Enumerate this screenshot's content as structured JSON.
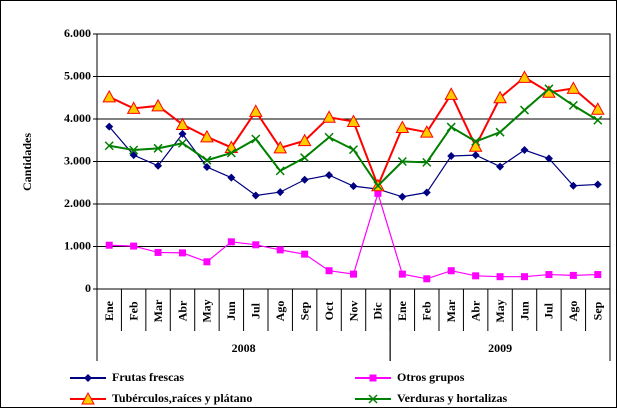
{
  "chart_data": {
    "type": "line",
    "y_label": "Cantidades",
    "categories": [
      "Ene",
      "Feb",
      "Mar",
      "Abr",
      "May",
      "Jun",
      "Jul",
      "Ago",
      "Sep",
      "Oct",
      "Nov",
      "Dic",
      "Ene",
      "Feb",
      "Mar",
      "Abr",
      "May",
      "Jun",
      "Jul",
      "Ago",
      "Sep"
    ],
    "x_groups": [
      {
        "label": "2008",
        "size": 12
      },
      {
        "label": "2009",
        "size": 9
      }
    ],
    "ylim": [
      0,
      6000
    ],
    "yticks": [
      0,
      {
        "value": 1000,
        "label": "1.000"
      },
      {
        "value": 2000,
        "label": "2.000"
      },
      {
        "value": 3000,
        "label": "3.000"
      },
      {
        "value": 4000,
        "label": "4.000"
      },
      {
        "value": 5000,
        "label": "5.000"
      },
      {
        "value": 6000,
        "label": "6.000"
      }
    ],
    "grid": true,
    "series": [
      {
        "name": "Frutas frescas",
        "color": "#000080",
        "marker": "diamond",
        "marker_fill": "#000080",
        "values": [
          3820,
          3150,
          2900,
          3650,
          2870,
          2620,
          2200,
          2280,
          2570,
          2680,
          2420,
          2350,
          2170,
          2270,
          3130,
          3150,
          2880,
          3270,
          3070,
          2430,
          2460
        ]
      },
      {
        "name": "Otros grupos",
        "color": "#ff00ff",
        "marker": "square",
        "marker_fill": "#ff00ff",
        "values": [
          1030,
          1010,
          860,
          850,
          640,
          1110,
          1040,
          920,
          820,
          430,
          350,
          2250,
          350,
          240,
          430,
          310,
          290,
          290,
          340,
          320,
          340
        ]
      },
      {
        "name": "Tubérculos,raíces y plátano",
        "color": "#ff0000",
        "marker": "triangle",
        "marker_fill": "#ffcc00",
        "values": [
          4520,
          4250,
          4310,
          3870,
          3580,
          3330,
          4180,
          3320,
          3490,
          4040,
          3940,
          2430,
          3800,
          3690,
          4580,
          3360,
          4500,
          4980,
          4630,
          4720,
          4230
        ]
      },
      {
        "name": "Verduras y hortalizas",
        "color": "#008000",
        "marker": "x",
        "marker_fill": "#008000",
        "values": [
          3370,
          3270,
          3310,
          3430,
          3030,
          3200,
          3530,
          2780,
          3090,
          3570,
          3280,
          2430,
          3000,
          2980,
          3810,
          3470,
          3690,
          4210,
          4710,
          4320,
          3970
        ]
      }
    ]
  }
}
